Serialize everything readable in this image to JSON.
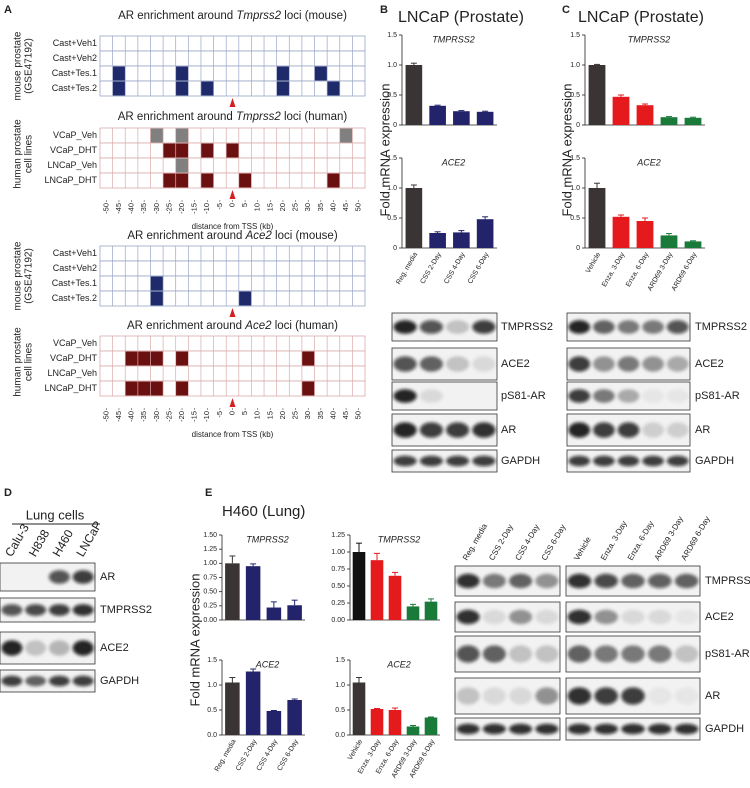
{
  "panel_labels": [
    "A",
    "B",
    "C",
    "D",
    "E"
  ],
  "heatmap_xticks": [
    -50,
    -45,
    -40,
    -35,
    -30,
    -25,
    -20,
    -15,
    -10,
    -5,
    0,
    5,
    10,
    15,
    20,
    25,
    30,
    35,
    40,
    45,
    50
  ],
  "heatmap_xlabel": "distance from TSS (kb)",
  "heatmaps": [
    {
      "title_prefix": "AR enrichment around ",
      "gene": "Tmprss2",
      "title_suffix": " loci   (mouse)",
      "group_label": [
        "mouse prostate",
        "(GSE47192)"
      ],
      "rows": [
        {
          "label": "Cast+Veh1",
          "label_color": "#333333",
          "cell_color": "#1f2a6b",
          "peaks": []
        },
        {
          "label": "Cast+Veh2",
          "label_color": "#333333",
          "cell_color": "#1f2a6b",
          "peaks": []
        },
        {
          "label": "Cast+Tes.1",
          "label_color": "#c0282d",
          "cell_color": "#1f2a6b",
          "peaks": [
            -45,
            -20,
            20,
            35
          ]
        },
        {
          "label": "Cast+Tes.2",
          "label_color": "#c0282d",
          "cell_color": "#1f2a6b",
          "peaks": [
            -45,
            -20,
            -10,
            20,
            40
          ]
        }
      ]
    },
    {
      "title_prefix": "AR enrichment around ",
      "gene": "Tmprss2",
      "title_suffix": " loci   (human)",
      "group_label": [
        "human prostate",
        "cell lines"
      ],
      "rows": [
        {
          "label": "VCaP_Veh",
          "label_color": "#333333",
          "cell_color": "#808080",
          "peaks": [
            -30,
            -20,
            45
          ]
        },
        {
          "label": "VCaP_DHT",
          "label_color": "#c0282d",
          "cell_color": "#6b1010",
          "peaks": [
            -25,
            -20,
            -10,
            0
          ]
        },
        {
          "label": "LNCaP_Veh",
          "label_color": "#333333",
          "cell_color": "#808080",
          "peaks": [
            -20
          ]
        },
        {
          "label": "LNCaP_DHT",
          "label_color": "#c0282d",
          "cell_color": "#6b1010",
          "peaks": [
            -25,
            -20,
            -10,
            5,
            40
          ]
        }
      ]
    },
    {
      "title_prefix": "AR enrichment around ",
      "gene": "Ace2",
      "title_suffix": " loci   (mouse)",
      "group_label": [
        "mouse prostate",
        "(GSE47192)"
      ],
      "rows": [
        {
          "label": "Cast+Veh1",
          "label_color": "#333333",
          "cell_color": "#1f2a6b",
          "peaks": []
        },
        {
          "label": "Cast+Veh2",
          "label_color": "#333333",
          "cell_color": "#1f2a6b",
          "peaks": []
        },
        {
          "label": "Cast+Tes.1",
          "label_color": "#c0282d",
          "cell_color": "#1f2a6b",
          "peaks": [
            -30
          ]
        },
        {
          "label": "Cast+Tes.2",
          "label_color": "#c0282d",
          "cell_color": "#1f2a6b",
          "peaks": [
            -30,
            5
          ]
        }
      ]
    },
    {
      "title_prefix": "AR enrichment around ",
      "gene": "Ace2",
      "title_suffix": " loci   (human)",
      "group_label": [
        "human prostate",
        "cell lines"
      ],
      "rows": [
        {
          "label": "VCaP_Veh",
          "label_color": "#333333",
          "cell_color": "#808080",
          "peaks": []
        },
        {
          "label": "VCaP_DHT",
          "label_color": "#c0282d",
          "cell_color": "#6b1010",
          "peaks": [
            -40,
            -35,
            -30,
            -20,
            30
          ]
        },
        {
          "label": "LNCaP_Veh",
          "label_color": "#333333",
          "cell_color": "#808080",
          "peaks": []
        },
        {
          "label": "LNCaP_DHT",
          "label_color": "#c0282d",
          "cell_color": "#6b1010",
          "peaks": [
            -40,
            -35,
            -30,
            -20,
            30
          ]
        }
      ]
    }
  ],
  "panel_titles": {
    "B": "LNCaP (Prostate)",
    "C": "LNCaP (Prostate)",
    "D": "Lung cells",
    "E": "H460 (Lung)"
  },
  "y_label": "Fold mRNA expression",
  "chart_data": [
    {
      "type": "bar",
      "title": "TMPRSS2",
      "values": [
        1.0,
        0.32,
        0.23,
        0.22
      ],
      "errors": [
        0.03,
        0.01,
        0.01,
        0.01
      ],
      "colors": [
        "#3b3434",
        "#23236b",
        "#23236b",
        "#23236b"
      ],
      "ylim": [
        0,
        1.5
      ],
      "yticks": [
        0,
        0.5,
        {
          "value": 1,
          "label": "1.0"
        },
        1.5
      ]
    },
    {
      "type": "bar",
      "title": "ACE2",
      "categories": [
        "Reg. media",
        "CSS 2-Day",
        "CSS 4-Day",
        "CSS 6-Day"
      ],
      "values": [
        1.0,
        0.25,
        0.26,
        0.48
      ],
      "errors": [
        0.05,
        0.02,
        0.03,
        0.04
      ],
      "colors": [
        "#3b3434",
        "#23236b",
        "#23236b",
        "#23236b"
      ],
      "ylim": [
        0,
        1.5
      ],
      "yticks": [
        0,
        0.5,
        {
          "value": 1,
          "label": "1.0"
        },
        1.5
      ]
    },
    {
      "type": "bar",
      "title": "TMPRSS2",
      "values": [
        1.0,
        0.47,
        0.33,
        0.13,
        0.12
      ],
      "errors": [
        0.01,
        0.03,
        0.02,
        0.01,
        0.01
      ],
      "colors": [
        "#3b3434",
        "#e41a1c",
        "#e41a1c",
        "#1a7a3a",
        "#1a7a3a"
      ],
      "ylim": [
        0,
        1.5
      ],
      "yticks": [
        0,
        0.5,
        {
          "value": 1,
          "label": "1.0"
        },
        1.5
      ]
    },
    {
      "type": "bar",
      "title": "ACE2",
      "categories": [
        "Vehicle",
        "Enza. 3-Day",
        "Enza. 6-Day",
        "ARD69 3-Day",
        "ARD69 6-Day"
      ],
      "values": [
        1.0,
        0.52,
        0.45,
        0.21,
        0.11
      ],
      "errors": [
        0.08,
        0.03,
        0.05,
        0.03,
        0.01
      ],
      "colors": [
        "#3b3434",
        "#e41a1c",
        "#e41a1c",
        "#1a7a3a",
        "#1a7a3a"
      ],
      "ylim": [
        0,
        1.5
      ],
      "yticks": [
        0,
        0.5,
        {
          "value": 1,
          "label": "1.0"
        },
        1.5
      ]
    },
    {
      "type": "bar",
      "title": "TMPRSS2",
      "values": [
        1.0,
        0.95,
        0.22,
        0.26
      ],
      "errors": [
        0.13,
        0.04,
        0.1,
        0.09
      ],
      "colors": [
        "#3b3434",
        "#23236b",
        "#23236b",
        "#23236b"
      ],
      "ylim": [
        0,
        1.5
      ],
      "yticks": [
        {
          "value": 0,
          "label": "0.00"
        },
        0.25,
        {
          "value": 0.5,
          "label": "0.50"
        },
        0.75,
        {
          "value": 1,
          "label": "1.00"
        },
        1.25,
        {
          "value": 1.5,
          "label": "1.50"
        }
      ]
    },
    {
      "type": "bar",
      "title": "TMPRSS2",
      "values": [
        1.0,
        0.88,
        0.65,
        0.2,
        0.27
      ],
      "errors": [
        0.13,
        0.1,
        0.05,
        0.03,
        0.04
      ],
      "colors": [
        "#111111",
        "#e41a1c",
        "#e41a1c",
        "#1a7a3a",
        "#1a7a3a"
      ],
      "ylim": [
        0,
        1.25
      ],
      "yticks": [
        {
          "value": 0,
          "label": "0.00"
        },
        0.25,
        {
          "value": 0.5,
          "label": "0.50"
        },
        0.75,
        {
          "value": 1,
          "label": "1.00"
        },
        1.25
      ]
    },
    {
      "type": "bar",
      "title": "ACE2",
      "categories": [
        "Reg. media",
        "CSS 2-Day",
        "CSS 4-Day",
        "CSS 6-Day"
      ],
      "values": [
        1.05,
        1.27,
        0.48,
        0.7
      ],
      "errors": [
        0.1,
        0.05,
        0.01,
        0.02
      ],
      "colors": [
        "#3b3434",
        "#23236b",
        "#23236b",
        "#23236b"
      ],
      "ylim": [
        0,
        1.5
      ],
      "yticks": [
        {
          "value": 0,
          "label": "0.0"
        },
        0.5,
        {
          "value": 1,
          "label": "1.0"
        },
        1.5
      ]
    },
    {
      "type": "bar",
      "title": "ACE2",
      "categories": [
        "Vehicle",
        "Enza. 3-Day",
        "Enza. 6-Day",
        "ARD69 3-Day",
        "ARD69 6-Day"
      ],
      "values": [
        1.05,
        0.52,
        0.5,
        0.17,
        0.35
      ],
      "errors": [
        0.1,
        0.01,
        0.04,
        0.02,
        0.01
      ],
      "colors": [
        "#3b3434",
        "#e41a1c",
        "#e41a1c",
        "#1a7a3a",
        "#1a7a3a"
      ],
      "ylim": [
        0,
        1.5
      ],
      "yticks": [
        {
          "value": 0,
          "label": "0.0"
        },
        0.5,
        {
          "value": 1,
          "label": "1.0"
        },
        1.5
      ]
    }
  ],
  "blots": [
    {
      "proteins": [
        "TMPRSS2",
        "ACE2",
        "pS81-AR",
        "AR",
        "GAPDH"
      ]
    },
    {
      "proteins": [
        "TMPRSS2",
        "ACE2",
        "pS81-AR",
        "AR",
        "GAPDH"
      ]
    },
    {
      "lanes": [
        "Calu-3",
        "H838",
        "H460",
        "LNCaP"
      ],
      "proteins": [
        "AR",
        "TMPRSS2",
        "ACE2",
        "GAPDH"
      ]
    },
    {
      "lanes": [
        "Reg. media",
        "CSS 2-Day",
        "CSS 4-Day",
        "CSS 6-Day"
      ]
    },
    {
      "lanes": [
        "Vehicle",
        "Enza. 3-Day",
        "Enza. 6-Day",
        "ARD69 3-Day",
        "ARD69 6-Day"
      ],
      "proteins": [
        "TMPRSS2",
        "ACE2",
        "pS81-AR",
        "AR",
        "GAPDH"
      ]
    }
  ]
}
